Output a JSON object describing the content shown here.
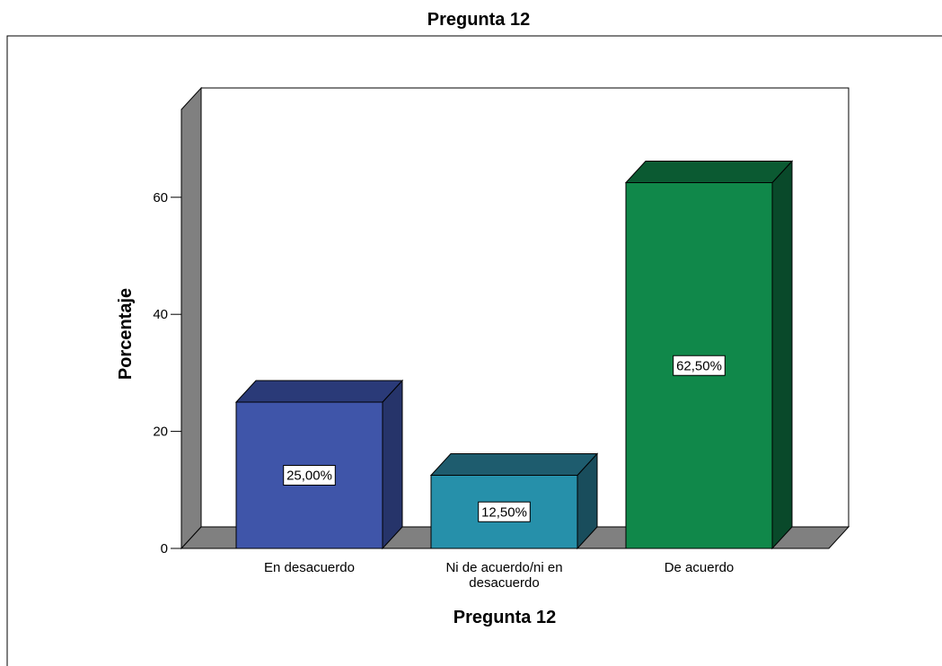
{
  "chart_data": {
    "type": "bar",
    "title": "Pregunta 12",
    "xlabel": "Pregunta 12",
    "ylabel": "Porcentaje",
    "categories": [
      "En desacuerdo",
      "Ni de acuerdo/ni en desacuerdo",
      "De acuerdo"
    ],
    "category_lines": [
      [
        "En desacuerdo"
      ],
      [
        "Ni de acuerdo/ni en",
        "desacuerdo"
      ],
      [
        "De acuerdo"
      ]
    ],
    "values": [
      25.0,
      12.5,
      62.5
    ],
    "data_labels": [
      "25,00%",
      "12,50%",
      "62,50%"
    ],
    "yticks": [
      0,
      20,
      40,
      60
    ],
    "ylim": [
      0,
      75
    ],
    "grid": false,
    "style": "3d",
    "colors": {
      "bars": [
        "#3F55A9",
        "#2690AA",
        "#10884A"
      ],
      "bar_tops": [
        "#2A3A78",
        "#1E5C6E",
        "#0B5A32"
      ],
      "bar_sides": [
        "#26346A",
        "#194D5C",
        "#09492A"
      ],
      "walls": "#808080",
      "floor": "#808080"
    }
  }
}
